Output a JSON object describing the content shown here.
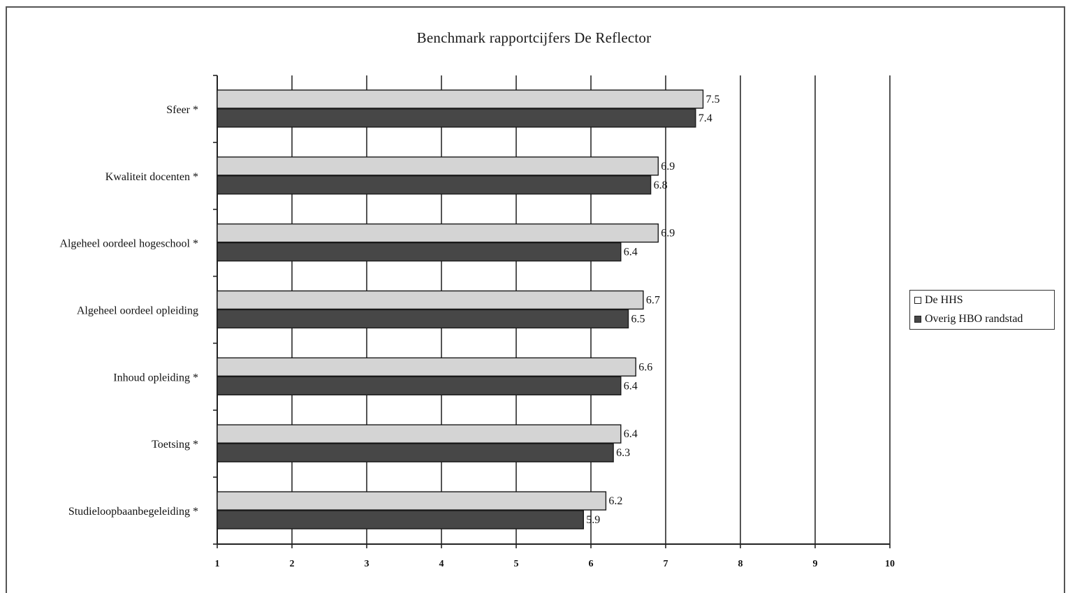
{
  "chart_data": {
    "type": "bar",
    "orientation": "horizontal",
    "title": "Benchmark rapportcijfers De Reflector",
    "categories": [
      "Sfeer *",
      "Kwaliteit docenten *",
      "Algeheel oordeel hogeschool *",
      "Algeheel oordeel opleiding",
      "Inhoud opleiding *",
      "Toetsing *",
      "Studieloopbaanbegeleiding  *"
    ],
    "series": [
      {
        "name": "De HHS",
        "color": "#d4d4d4",
        "values": [
          7.5,
          6.9,
          6.9,
          6.7,
          6.6,
          6.4,
          6.2
        ],
        "value_labels": [
          "7.5",
          "6.9",
          "6.9",
          "6.7",
          "6.6",
          "6.4",
          "6.2"
        ]
      },
      {
        "name": "Overig HBO randstad",
        "color": "#474747",
        "values": [
          7.4,
          6.8,
          6.4,
          6.5,
          6.4,
          6.3,
          5.9
        ],
        "value_labels": [
          "7.4",
          "6.8",
          "6.4",
          "6.5",
          "6.4",
          "6.3",
          "5.9"
        ]
      }
    ],
    "xlim": [
      1,
      10
    ],
    "xticks": [
      "1",
      "2",
      "3",
      "4",
      "5",
      "6",
      "7",
      "8",
      "9",
      "10"
    ],
    "gridlines": true,
    "legend_position": "right"
  }
}
